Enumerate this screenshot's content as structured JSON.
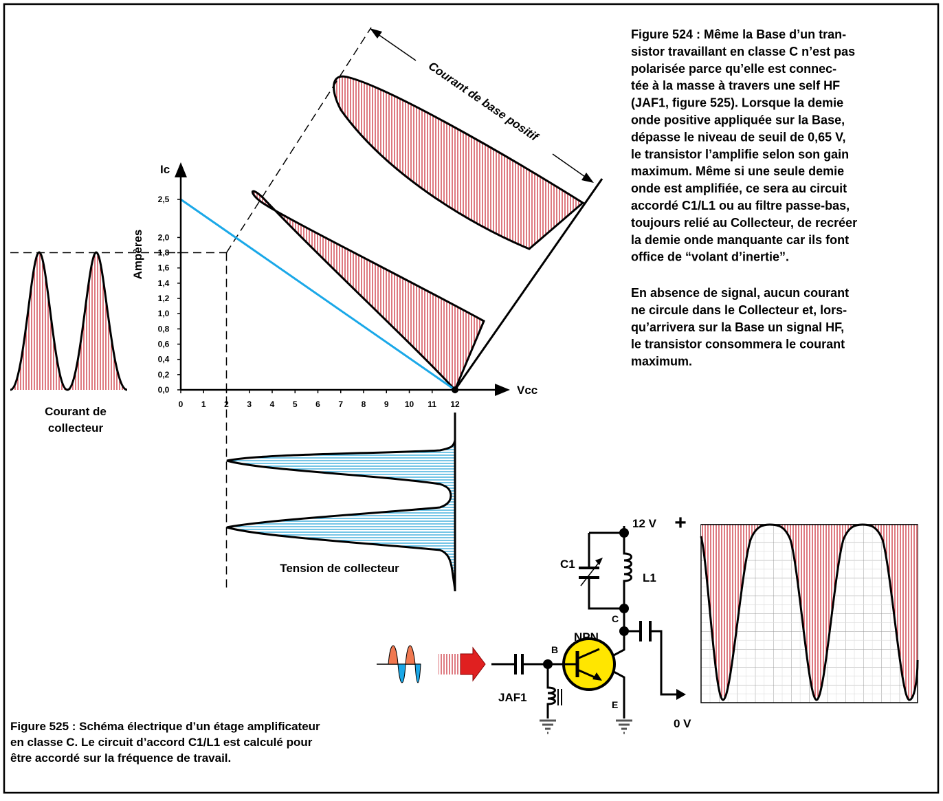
{
  "figure_524": {
    "label": "Figure 524 :",
    "lines": [
      "Même la Base d’un tran-",
      "sistor travaillant en classe C n’est pas",
      "polarisée parce qu’elle est connec-",
      "tée à la masse à travers une self HF",
      "(JAF1, figure 525). Lorsque la demie",
      "onde positive appliquée sur la Base,",
      "dépasse le niveau de seuil de 0,65 V,",
      "le transistor l’amplifie selon son gain",
      "maximum. Même si une seule demie",
      "onde est amplifiée, ce sera au circuit",
      "accordé C1/L1 ou au filtre passe-bas,",
      "toujours relié au Collecteur, de recréer",
      "la demie onde manquante car ils font",
      "office de “volant d’inertie”."
    ],
    "paragraph_2": [
      "En absence de signal, aucun courant",
      "ne circule dans le Collecteur et, lors-",
      "qu’arrivera sur la Base un signal HF,",
      "le transistor consommera le courant",
      "maximum."
    ]
  },
  "graph": {
    "y_label": "Ic",
    "y_title": "Ampères",
    "x_label": "Vcc",
    "yticks": [
      {
        "value": 0,
        "label": "0,0"
      },
      {
        "value": 0.2,
        "label": "0,2"
      },
      {
        "value": 0.4,
        "label": "0,4"
      },
      {
        "value": 0.6,
        "label": "0,6"
      },
      {
        "value": 0.8,
        "label": "0,8"
      },
      {
        "value": 1.0,
        "label": "1,0"
      },
      {
        "value": 1.2,
        "label": "1,2"
      },
      {
        "value": 1.4,
        "label": "1,4"
      },
      {
        "value": 1.6,
        "label": "1,6"
      },
      {
        "value": 1.8,
        "label": "1,8"
      },
      {
        "value": 2.0,
        "label": "2,0"
      },
      {
        "value": 2.5,
        "label": "2,5"
      }
    ],
    "xticks": [
      0,
      1,
      2,
      3,
      4,
      5,
      6,
      7,
      8,
      9,
      10,
      11,
      12
    ],
    "operating_point": {
      "x": 2,
      "y": 1.8
    },
    "base_current_label": "Courant de base positif",
    "collector_current_label": [
      "Courant de",
      "collecteur"
    ],
    "collector_voltage_label": "Tension de collecteur"
  },
  "circuit": {
    "supply": "12 V",
    "plus": "+",
    "c1": "C1",
    "l1": "L1",
    "transistor": "NPN",
    "collector": "C",
    "base": "B",
    "emitter": "E",
    "choke": "JAF1",
    "ground": "0 V"
  },
  "figure_525": {
    "label": "Figure 525 :",
    "lines": [
      "Schéma électrique d’un étage amplificateur",
      "en classe C. Le circuit d’accord C1/L1 est calculé pour",
      "être accordé sur la fréquence de travail."
    ]
  }
}
